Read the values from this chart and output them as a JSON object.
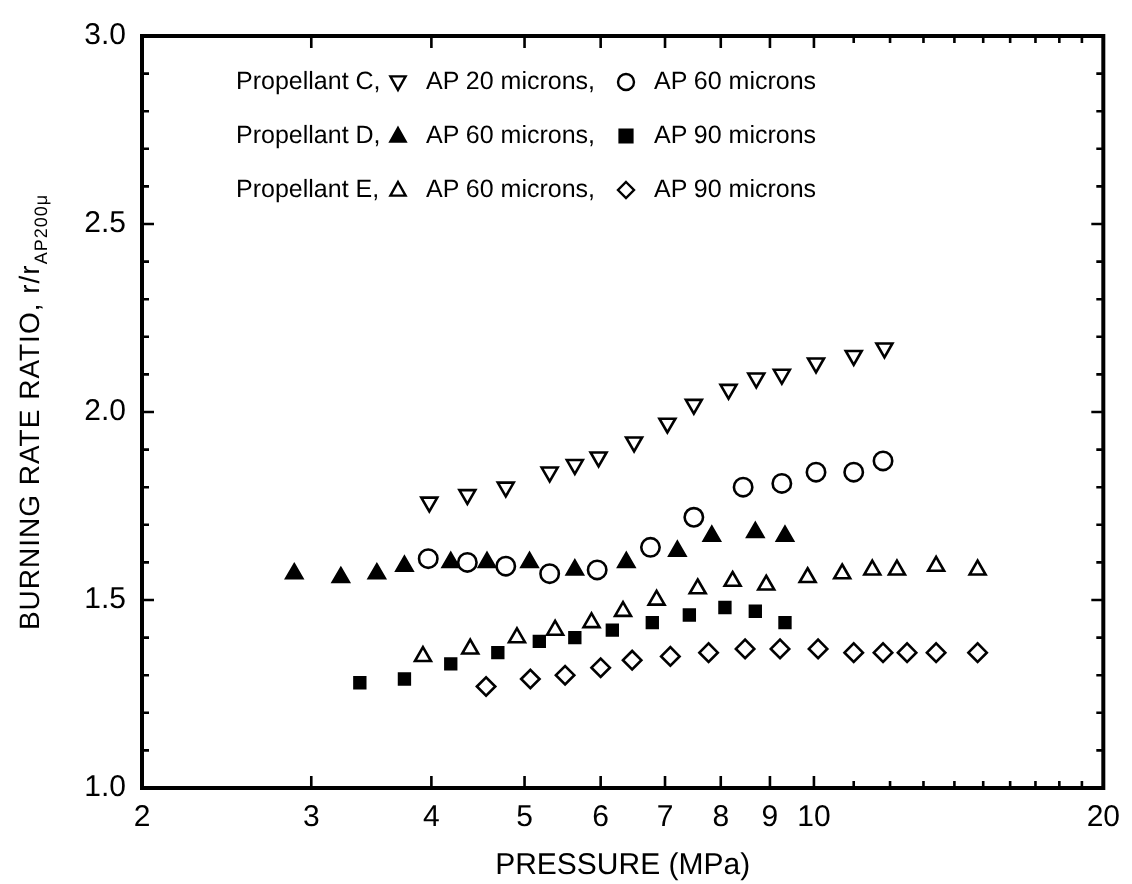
{
  "chart_data": {
    "type": "scatter",
    "xlabel": "PRESSURE (MPa)",
    "ylabel": "BURNING RATE RATIO, r/r$_{AP200μ}$",
    "log": "x",
    "xlim": [
      2,
      20
    ],
    "xticks": [
      2,
      3,
      4,
      5,
      6,
      7,
      8,
      9,
      10,
      {
        "value": 11,
        "label": null
      },
      {
        "value": 12,
        "label": null
      },
      {
        "value": 13,
        "label": null
      },
      {
        "value": 14,
        "label": null
      },
      {
        "value": 15,
        "label": null
      },
      {
        "value": 16,
        "label": null
      },
      {
        "value": 17,
        "label": null
      },
      {
        "value": 18,
        "label": null
      },
      {
        "value": 19,
        "label": null
      },
      20
    ],
    "ylim": [
      1,
      3
    ],
    "yticks": [
      {
        "value": 1,
        "label": "1.0"
      },
      {
        "value": 1.1,
        "label": null
      },
      {
        "value": 1.2,
        "label": null
      },
      {
        "value": 1.3,
        "label": null
      },
      {
        "value": 1.4,
        "label": null
      },
      {
        "value": 1.5,
        "label": "1.5"
      },
      {
        "value": 1.6,
        "label": null
      },
      {
        "value": 1.7,
        "label": null
      },
      {
        "value": 1.8,
        "label": null
      },
      {
        "value": 1.9,
        "label": null
      },
      {
        "value": 2,
        "label": "2.0"
      },
      {
        "value": 2.1,
        "label": null
      },
      {
        "value": 2.2,
        "label": null
      },
      {
        "value": 2.3,
        "label": null
      },
      {
        "value": 2.4,
        "label": null
      },
      {
        "value": 2.5,
        "label": "2.5"
      },
      {
        "value": 2.6,
        "label": null
      },
      {
        "value": 2.7,
        "label": null
      },
      {
        "value": 2.8,
        "label": null
      },
      {
        "value": 2.9,
        "label": null
      },
      {
        "value": 3,
        "label": "3.0"
      }
    ],
    "legend": "top left",
    "annotations": [
      "Propellant C,",
      "Propellant D,",
      "Propellant E,"
    ],
    "series": [
      {
        "name": "AP 20 microns,",
        "color": "#000000",
        "marker": "triangle-down",
        "x": [
          3.98,
          4.36,
          4.78,
          5.31,
          5.64,
          5.97,
          6.5,
          7.04,
          7.5,
          8.15,
          8.71,
          9.26,
          10.05,
          11.0,
          11.84
        ],
        "values": [
          1.76,
          1.78,
          1.8,
          1.84,
          1.86,
          1.88,
          1.92,
          1.97,
          2.02,
          2.06,
          2.09,
          2.1,
          2.13,
          2.15,
          2.17
        ]
      },
      {
        "name": "AP 60 microns",
        "color": "#000000",
        "marker": "circle",
        "x": [
          3.97,
          4.36,
          4.78,
          5.31,
          5.95,
          6.76,
          7.5,
          8.44,
          9.26,
          10.05,
          11.0,
          11.8
        ],
        "values": [
          1.61,
          1.6,
          1.59,
          1.57,
          1.58,
          1.64,
          1.72,
          1.8,
          1.81,
          1.84,
          1.84,
          1.87
        ]
      },
      {
        "name": "AP 60 microns,",
        "color": "#000000",
        "marker": "triangle-filled",
        "x": [
          2.88,
          3.22,
          3.51,
          3.75,
          4.19,
          4.57,
          5.06,
          5.64,
          6.38,
          7.21,
          7.83,
          8.69,
          9.33
        ],
        "values": [
          1.57,
          1.56,
          1.57,
          1.59,
          1.6,
          1.6,
          1.6,
          1.58,
          1.6,
          1.63,
          1.67,
          1.68,
          1.67
        ]
      },
      {
        "name": "AP 90 microns",
        "color": "#000000",
        "marker": "square-filled",
        "x": [
          3.37,
          3.75,
          4.19,
          4.69,
          5.18,
          5.64,
          6.17,
          6.79,
          7.42,
          8.08,
          8.69,
          9.33
        ],
        "values": [
          1.28,
          1.29,
          1.33,
          1.36,
          1.39,
          1.4,
          1.42,
          1.44,
          1.46,
          1.48,
          1.47,
          1.44
        ]
      },
      {
        "name": "AP 60 microns,",
        "color": "#000000",
        "marker": "triangle",
        "x": [
          3.92,
          4.39,
          4.91,
          5.38,
          5.87,
          6.33,
          6.86,
          7.57,
          8.23,
          8.92,
          9.85,
          10.7,
          11.5,
          12.2,
          13.4,
          14.8
        ],
        "values": [
          1.35,
          1.37,
          1.4,
          1.42,
          1.44,
          1.47,
          1.5,
          1.53,
          1.55,
          1.54,
          1.56,
          1.57,
          1.58,
          1.58,
          1.59,
          1.58
        ]
      },
      {
        "name": "AP 90 microns",
        "color": "#000000",
        "marker": "diamond",
        "x": [
          4.56,
          5.07,
          5.51,
          6.0,
          6.47,
          7.09,
          7.77,
          8.48,
          9.22,
          10.1,
          11.0,
          11.8,
          12.5,
          13.4,
          14.8
        ],
        "values": [
          1.27,
          1.29,
          1.3,
          1.32,
          1.34,
          1.35,
          1.36,
          1.37,
          1.37,
          1.37,
          1.36,
          1.36,
          1.36,
          1.36,
          1.36
        ]
      }
    ]
  }
}
